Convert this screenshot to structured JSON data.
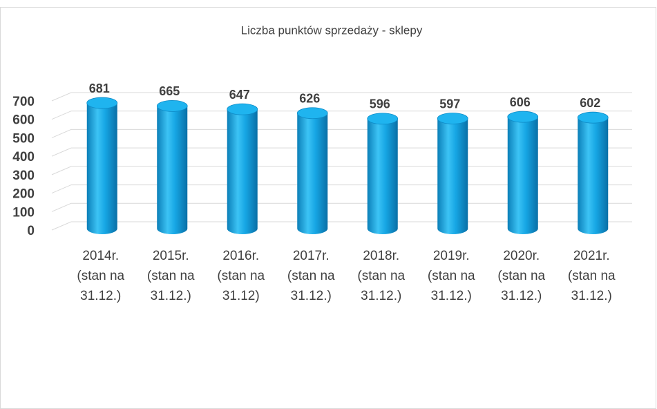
{
  "chart_data": {
    "type": "bar3d",
    "title": "Liczba punktów sprzedaży - sklepy",
    "categories": [
      "2014r. (stan na 31.12.)",
      "2015r. (stan na 31.12.)",
      "2016r. (stan na 31.12)",
      "2017r. (stan na 31.12.)",
      "2018r. (stan na 31.12.)",
      "2019r. (stan na 31.12.)",
      "2020r. (stan na 31.12.)",
      "2021r. (stan na 31.12.)"
    ],
    "values": [
      681,
      665,
      647,
      626,
      596,
      597,
      606,
      602
    ],
    "color": "#14a8e6",
    "ylim": [
      0,
      700
    ],
    "yticks": [
      0,
      100,
      200,
      300,
      400,
      500,
      600,
      700
    ],
    "grid": true
  }
}
